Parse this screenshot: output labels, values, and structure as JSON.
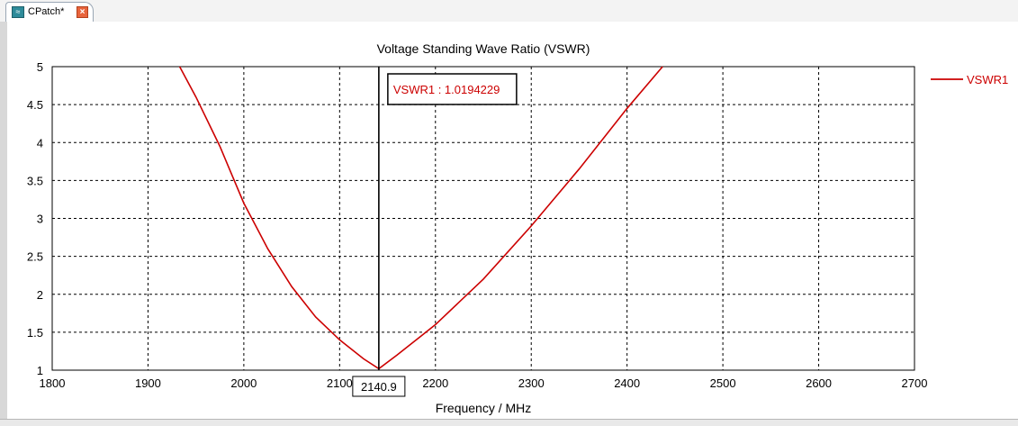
{
  "tab": {
    "label": "CPatch*",
    "icon": "wave-icon",
    "close_icon": "close-icon"
  },
  "chart_data": {
    "type": "line",
    "title": "Voltage Standing Wave Ratio (VSWR)",
    "xlabel": "Frequency / MHz",
    "ylabel": "",
    "xlim": [
      1800,
      2700
    ],
    "ylim": [
      1,
      5
    ],
    "x_ticks": [
      "1800",
      "1900",
      "2000",
      "2100",
      "2200",
      "2300",
      "2400",
      "2500",
      "2600",
      "2700"
    ],
    "y_ticks": [
      "1",
      "1.5",
      "2",
      "2.5",
      "3",
      "3.5",
      "4",
      "4.5",
      "5"
    ],
    "grid": true,
    "legend_position": "top-right",
    "series": [
      {
        "name": "VSWR1",
        "color": "#cc0000",
        "x": [
          1933,
          1950,
          1975,
          2000,
          2025,
          2050,
          2075,
          2100,
          2125,
          2140.9,
          2160,
          2185,
          2200,
          2250,
          2300,
          2350,
          2400,
          2437
        ],
        "y": [
          5.0,
          4.6,
          3.95,
          3.2,
          2.6,
          2.1,
          1.7,
          1.4,
          1.15,
          1.0194229,
          1.2,
          1.45,
          1.6,
          2.2,
          2.9,
          3.65,
          4.45,
          5.0
        ]
      }
    ],
    "marker": {
      "x": 2140.9,
      "x_label": "2140.9",
      "label": "VSWR1 : 1.0194229"
    }
  }
}
